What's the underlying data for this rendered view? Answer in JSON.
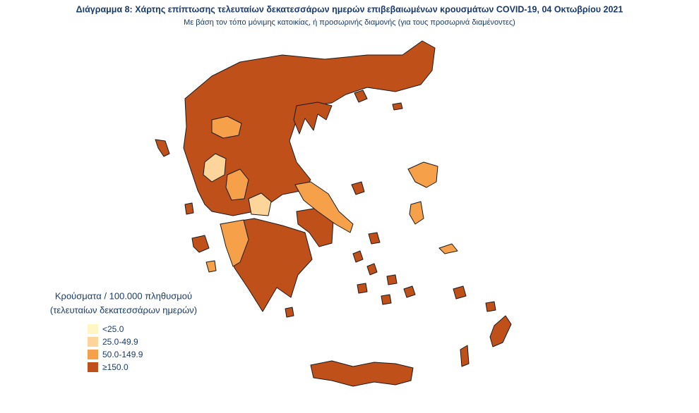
{
  "title": "Διάγραμμα 8: Χάρτης επίπτωσης τελευταίων δεκατεσσάρων ημερών επιβεβαιωμένων κρουσμάτων COVID-19, 04 Οκτωβρίου 2021",
  "subtitle": "Με βάση τον τόπο μόνιμης κατοικίας, ή προσωρινής διαμονής (για τους προσωρινά διαμένοντες)",
  "legend": {
    "title": [
      "Κρούσματα / 100.000 πληθυσμού",
      "(τελευταίων δεκατεσσάρων ημερών)"
    ],
    "items": [
      {
        "label": "<25.0",
        "color": "#fff6c4"
      },
      {
        "label": "25.0-49.9",
        "color": "#fdd49a"
      },
      {
        "label": "50.0-149.9",
        "color": "#f7a04a"
      },
      {
        "label": "≥150.0",
        "color": "#c0501a"
      }
    ]
  }
}
